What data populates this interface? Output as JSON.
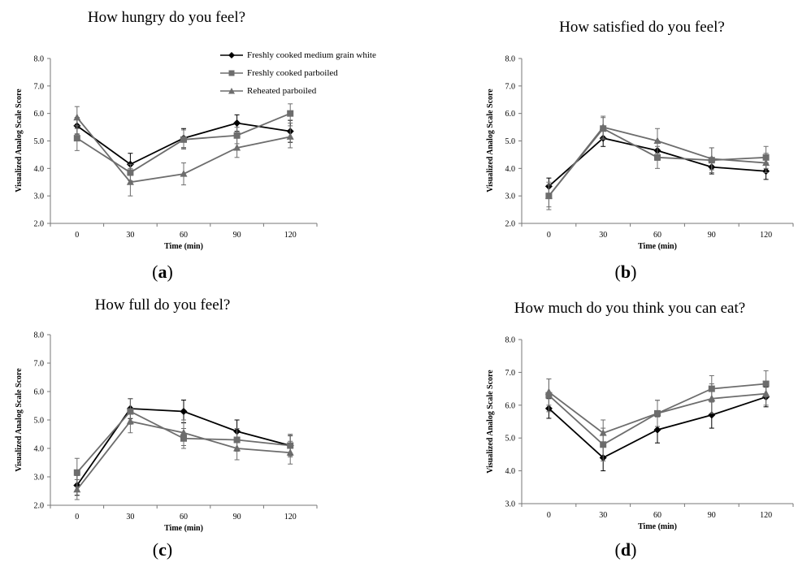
{
  "legend": {
    "entries": [
      {
        "name": "Freshly cooked medium grain white",
        "color": "#000000",
        "marker": "diamond"
      },
      {
        "name": "Freshly cooked parboiled",
        "color": "#6d6d6d",
        "marker": "square"
      },
      {
        "name": "Reheated parboiled",
        "color": "#6d6d6d",
        "marker": "triangle"
      }
    ]
  },
  "chart_data": [
    {
      "panel_label": "a",
      "type": "line",
      "title": "How hungry do you feel?",
      "xlabel": "Time (min)",
      "ylabel": "Visualized Analog Scale Score",
      "x": [
        0,
        30,
        60,
        90,
        120
      ],
      "ylim": [
        2.0,
        8.0
      ],
      "yticks": [
        "2.0",
        "3.0",
        "4.0",
        "5.0",
        "6.0",
        "7.0",
        "8.0"
      ],
      "series": [
        {
          "name": "Freshly cooked medium grain white",
          "values": [
            5.55,
            4.15,
            5.1,
            5.65,
            5.35
          ],
          "errors": [
            0.3,
            0.4,
            0.35,
            0.3,
            0.4
          ]
        },
        {
          "name": "Freshly cooked parboiled",
          "values": [
            5.1,
            3.85,
            5.05,
            5.2,
            6.0
          ],
          "errors": [
            0.45,
            0.3,
            0.35,
            0.3,
            0.35
          ]
        },
        {
          "name": "Reheated parboiled",
          "values": [
            5.85,
            3.5,
            3.8,
            4.75,
            5.15
          ],
          "errors": [
            0.4,
            0.5,
            0.4,
            0.35,
            0.4
          ]
        }
      ]
    },
    {
      "panel_label": "b",
      "type": "line",
      "title": "How satisfied do you feel?",
      "xlabel": "Time (min)",
      "ylabel": "Visualized Analog Scale Score",
      "x": [
        0,
        30,
        60,
        90,
        120
      ],
      "ylim": [
        2.0,
        8.0
      ],
      "yticks": [
        "2.0",
        "3.0",
        "4.0",
        "5.0",
        "6.0",
        "7.0",
        "8.0"
      ],
      "series": [
        {
          "name": "Freshly cooked medium grain white",
          "values": [
            3.35,
            5.1,
            4.65,
            4.05,
            3.9
          ],
          "errors": [
            0.3,
            0.3,
            0.35,
            0.25,
            0.3
          ]
        },
        {
          "name": "Freshly cooked parboiled",
          "values": [
            3.0,
            5.45,
            4.4,
            4.3,
            4.4
          ],
          "errors": [
            0.5,
            0.4,
            0.4,
            0.45,
            0.4
          ]
        },
        {
          "name": "Reheated parboiled",
          "values": [
            3.0,
            5.5,
            5.0,
            4.35,
            4.2
          ],
          "errors": [
            0.4,
            0.4,
            0.45,
            0.4,
            0.35
          ]
        }
      ]
    },
    {
      "panel_label": "c",
      "type": "line",
      "title": "How full do you feel?",
      "xlabel": "Time (min)",
      "ylabel": "Visualized Analog Scale Score",
      "x": [
        0,
        30,
        60,
        90,
        120
      ],
      "ylim": [
        2.0,
        8.0
      ],
      "yticks": [
        "2.0",
        "3.0",
        "4.0",
        "5.0",
        "6.0",
        "7.0",
        "8.0"
      ],
      "series": [
        {
          "name": "Freshly cooked medium grain white",
          "values": [
            2.7,
            5.4,
            5.3,
            4.6,
            4.1
          ],
          "errors": [
            0.35,
            0.35,
            0.4,
            0.4,
            0.35
          ]
        },
        {
          "name": "Freshly cooked parboiled",
          "values": [
            3.15,
            5.3,
            4.35,
            4.3,
            4.1
          ],
          "errors": [
            0.5,
            0.45,
            0.35,
            0.4,
            0.4
          ]
        },
        {
          "name": "Reheated parboiled",
          "values": [
            2.55,
            4.95,
            4.55,
            4.0,
            3.85
          ],
          "errors": [
            0.35,
            0.4,
            0.45,
            0.4,
            0.4
          ]
        }
      ]
    },
    {
      "panel_label": "d",
      "type": "line",
      "title": "How much do you think you can eat?",
      "xlabel": "Time (min)",
      "ylabel": "Visualized Analog Scale Score",
      "x": [
        0,
        30,
        60,
        90,
        120
      ],
      "ylim": [
        3.0,
        8.0
      ],
      "yticks": [
        "3.0",
        "4.0",
        "5.0",
        "6.0",
        "7.0",
        "8.0"
      ],
      "series": [
        {
          "name": "Freshly cooked medium grain white",
          "values": [
            5.9,
            4.4,
            5.25,
            5.7,
            6.25
          ],
          "errors": [
            0.3,
            0.4,
            0.4,
            0.4,
            0.3
          ]
        },
        {
          "name": "Freshly cooked parboiled",
          "values": [
            6.3,
            4.8,
            5.75,
            6.5,
            6.65
          ],
          "errors": [
            0.5,
            0.5,
            0.4,
            0.4,
            0.4
          ]
        },
        {
          "name": "Reheated parboiled",
          "values": [
            6.4,
            5.15,
            5.75,
            6.2,
            6.35
          ],
          "errors": [
            0.4,
            0.4,
            0.4,
            0.45,
            0.35
          ]
        }
      ]
    }
  ]
}
